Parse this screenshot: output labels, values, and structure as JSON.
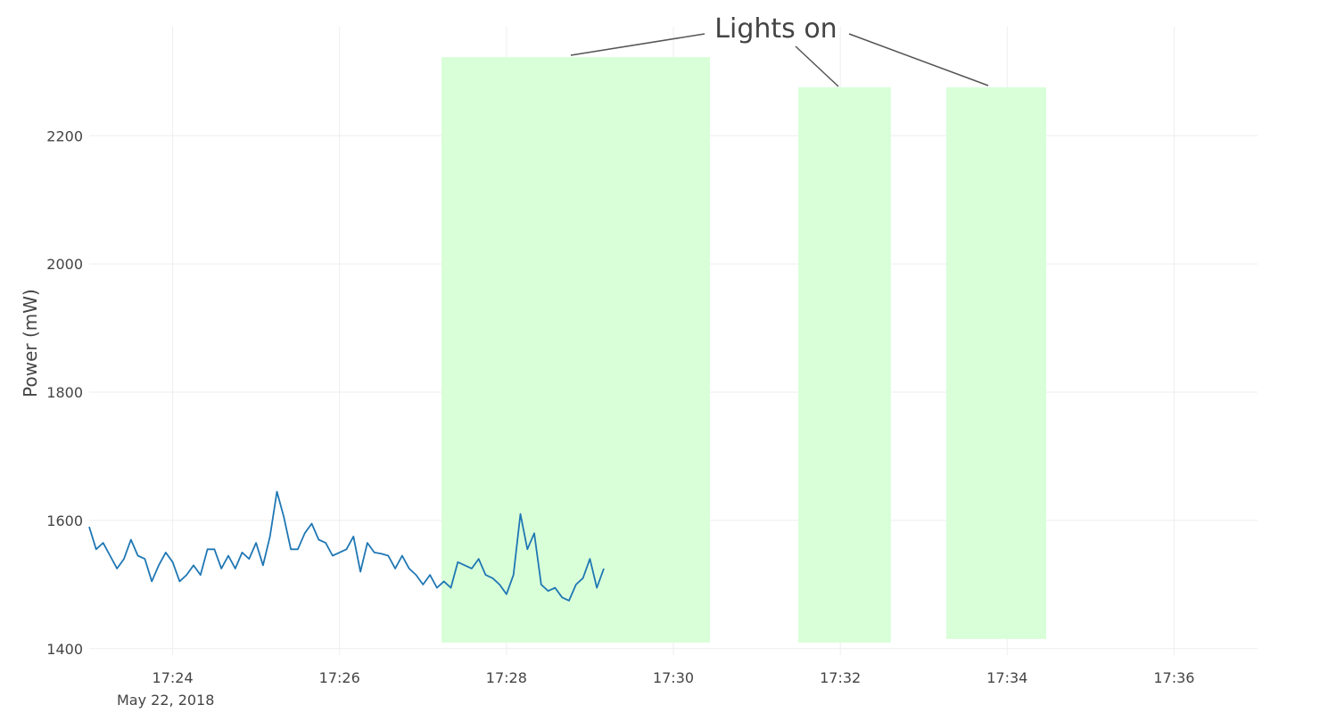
{
  "chart_data": {
    "type": "line",
    "title": "",
    "xlabel": "",
    "ylabel": "Power (mW)",
    "date_label": "May 22, 2018",
    "xlim": [
      "17:23:00",
      "17:37:00"
    ],
    "ylim": [
      1390,
      2370
    ],
    "x_ticks": [
      "17:24",
      "17:26",
      "17:28",
      "17:30",
      "17:32",
      "17:34",
      "17:36"
    ],
    "y_ticks": [
      1400,
      1600,
      1800,
      2000,
      2200
    ],
    "grid": true,
    "legend": "none",
    "colors": {
      "line": "#1f77b4",
      "lights_line": "#17a899",
      "shade": "#d9ffd9",
      "grid": "#eeeeee",
      "annotation_arrow": "#555555"
    },
    "series": [
      {
        "values": [
          [
            "17:23:00",
            1590
          ],
          [
            "17:23:05",
            1555
          ],
          [
            "17:23:10",
            1565
          ],
          [
            "17:23:15",
            1545
          ],
          [
            "17:23:20",
            1525
          ],
          [
            "17:23:25",
            1540
          ],
          [
            "17:23:30",
            1570
          ],
          [
            "17:23:35",
            1545
          ],
          [
            "17:23:40",
            1540
          ],
          [
            "17:23:45",
            1505
          ],
          [
            "17:23:50",
            1530
          ],
          [
            "17:23:55",
            1550
          ],
          [
            "17:24:00",
            1535
          ],
          [
            "17:24:05",
            1505
          ],
          [
            "17:24:10",
            1515
          ],
          [
            "17:24:15",
            1530
          ],
          [
            "17:24:20",
            1515
          ],
          [
            "17:24:25",
            1555
          ],
          [
            "17:24:30",
            1555
          ],
          [
            "17:24:35",
            1525
          ],
          [
            "17:24:40",
            1545
          ],
          [
            "17:24:45",
            1525
          ],
          [
            "17:24:50",
            1550
          ],
          [
            "17:24:55",
            1540
          ],
          [
            "17:25:00",
            1565
          ],
          [
            "17:25:05",
            1530
          ],
          [
            "17:25:10",
            1575
          ],
          [
            "17:25:15",
            1645
          ],
          [
            "17:25:20",
            1605
          ],
          [
            "17:25:25",
            1555
          ],
          [
            "17:25:30",
            1555
          ],
          [
            "17:25:35",
            1580
          ],
          [
            "17:25:40",
            1595
          ],
          [
            "17:25:45",
            1570
          ],
          [
            "17:25:50",
            1565
          ],
          [
            "17:25:55",
            1545
          ],
          [
            "17:26:00",
            1550
          ],
          [
            "17:26:05",
            1555
          ],
          [
            "17:26:10",
            1575
          ],
          [
            "17:26:15",
            1520
          ],
          [
            "17:26:20",
            1565
          ],
          [
            "17:26:25",
            1550
          ],
          [
            "17:26:30",
            1548
          ],
          [
            "17:26:35",
            1545
          ],
          [
            "17:26:40",
            1525
          ],
          [
            "17:26:45",
            1545
          ],
          [
            "17:26:50",
            1525
          ],
          [
            "17:26:55",
            1515
          ],
          [
            "17:27:00",
            1500
          ],
          [
            "17:27:05",
            1515
          ],
          [
            "17:27:10",
            1495
          ],
          [
            "17:27:15",
            1505
          ],
          [
            "17:27:20",
            1495
          ],
          [
            "17:27:25",
            1535
          ],
          [
            "17:27:30",
            1530
          ],
          [
            "17:27:35",
            1525
          ],
          [
            "17:27:40",
            1540
          ],
          [
            "17:27:45",
            1515
          ],
          [
            "17:27:50",
            1510
          ],
          [
            "17:27:55",
            1500
          ],
          [
            "17:28:00",
            1485
          ],
          [
            "17:28:05",
            1515
          ],
          [
            "17:28:10",
            1610
          ],
          [
            "17:28:15",
            1555
          ],
          [
            "17:28:20",
            1580
          ],
          [
            "17:28:25",
            1500
          ],
          [
            "17:28:30",
            1490
          ],
          [
            "17:28:35",
            1495
          ],
          [
            "17:28:40",
            1480
          ],
          [
            "17:28:45",
            1475
          ],
          [
            "17:28:50",
            1500
          ],
          [
            "17:28:55",
            1510
          ],
          [
            "17:29:00",
            1540
          ],
          [
            "17:29:05",
            1495
          ],
          [
            "17:29:10",
            1525
          ]
        ]
      }
    ],
    "annotation": {
      "text": "Lights on"
    }
  }
}
